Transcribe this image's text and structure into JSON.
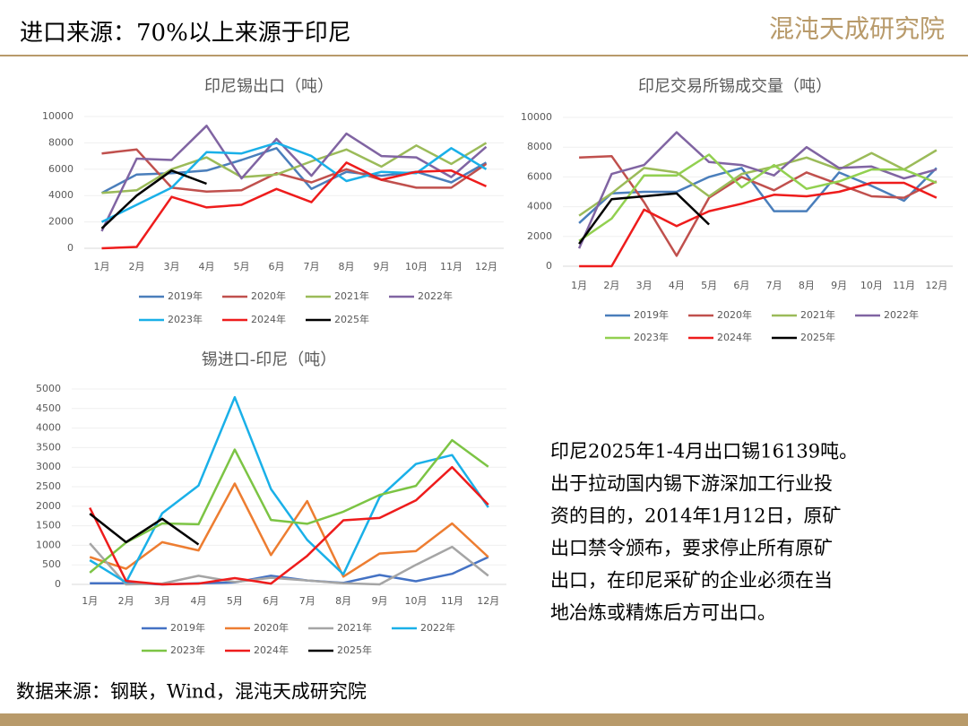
{
  "header": {
    "title": "进口来源：70%以上来源于印尼",
    "logo": "混沌天成研究院"
  },
  "note": {
    "lines": [
      "印尼2025年1-4月出口锡16139吨。",
      "出于拉动国内锡下游深加工行业投",
      "资的目的，2014年1月12日，原矿",
      "出口禁令颁布，要求停止所有原矿",
      "出口，在印尼采矿的企业必须在当",
      "地冶炼或精炼后方可出口。"
    ]
  },
  "source": "数据来源：钢联，Wind，混沌天成研究院",
  "chart_data": [
    {
      "type": "line",
      "title": "印尼锡出口（吨）",
      "grid": true,
      "categories": [
        "1月",
        "2月",
        "3月",
        "4月",
        "5月",
        "6月",
        "7月",
        "8月",
        "9月",
        "10月",
        "11月",
        "12月"
      ],
      "ylim": [
        0,
        10000
      ],
      "yticks": [
        0,
        2000,
        4000,
        6000,
        8000,
        10000
      ],
      "series": [
        {
          "name": "2019年",
          "color": "#4a7ebb",
          "values": [
            4200,
            5600,
            5700,
            5900,
            6700,
            7600,
            4500,
            5800,
            5500,
            5800,
            5000,
            6500
          ]
        },
        {
          "name": "2020年",
          "color": "#c0504d",
          "values": [
            7200,
            7500,
            4600,
            4300,
            4400,
            5700,
            5000,
            6000,
            5200,
            4600,
            4600,
            6400
          ]
        },
        {
          "name": "2021年",
          "color": "#9bbb59",
          "values": [
            4200,
            4400,
            6000,
            6900,
            5400,
            5600,
            6600,
            7500,
            6200,
            7800,
            6400,
            8000
          ]
        },
        {
          "name": "2022年",
          "color": "#8064a2",
          "values": [
            1300,
            6800,
            6700,
            9300,
            5300,
            8300,
            5500,
            8700,
            7000,
            6900,
            5400,
            7700
          ]
        },
        {
          "name": "2023年",
          "color": "#1ab0e8",
          "values": [
            2000,
            3300,
            4600,
            7300,
            7200,
            8000,
            7000,
            5100,
            5800,
            5700,
            7600,
            6000
          ]
        },
        {
          "name": "2024年",
          "color": "#ee1c1c",
          "values": [
            0,
            100,
            3900,
            3100,
            3300,
            4500,
            3500,
            6500,
            5200,
            5800,
            5900,
            4700
          ]
        },
        {
          "name": "2025年",
          "color": "#000000",
          "values": [
            1500,
            4000,
            5900,
            4900,
            null,
            null,
            null,
            null,
            null,
            null,
            null,
            null
          ]
        }
      ]
    },
    {
      "type": "line",
      "title": "印尼交易所锡成交量（吨）",
      "grid": true,
      "categories": [
        "1月",
        "2月",
        "3月",
        "4月",
        "5月",
        "6月",
        "7月",
        "8月",
        "9月",
        "10月",
        "11月",
        "12月"
      ],
      "ylim": [
        0,
        10000
      ],
      "yticks": [
        0,
        2000,
        4000,
        6000,
        8000,
        10000
      ],
      "series": [
        {
          "name": "2019年",
          "color": "#4a7ebb",
          "values": [
            2900,
            4900,
            5000,
            5000,
            6000,
            6600,
            3700,
            3700,
            6300,
            5400,
            4400,
            6600
          ]
        },
        {
          "name": "2020年",
          "color": "#c0504d",
          "values": [
            7300,
            7400,
            4300,
            700,
            4600,
            6000,
            5100,
            6300,
            5500,
            4700,
            4600,
            5700
          ]
        },
        {
          "name": "2021年",
          "color": "#9bbb59",
          "values": [
            3400,
            4900,
            6600,
            6300,
            4700,
            6200,
            6700,
            7300,
            6500,
            7600,
            6500,
            7800
          ]
        },
        {
          "name": "2022年",
          "color": "#8064a2",
          "values": [
            1200,
            6200,
            6800,
            9000,
            7000,
            6800,
            6100,
            8000,
            6600,
            6700,
            5900,
            6500
          ]
        },
        {
          "name": "2023年",
          "color": "#92d050",
          "values": [
            1700,
            3200,
            6100,
            6100,
            7500,
            5300,
            6800,
            5200,
            5700,
            6500,
            6500,
            5600
          ]
        },
        {
          "name": "2024年",
          "color": "#ee1c1c",
          "values": [
            0,
            0,
            3800,
            2700,
            3700,
            4200,
            4800,
            4700,
            5000,
            5600,
            5600,
            4600
          ]
        },
        {
          "name": "2025年",
          "color": "#000000",
          "values": [
            1500,
            4500,
            4700,
            4900,
            2800,
            null,
            null,
            null,
            null,
            null,
            null,
            null
          ]
        }
      ]
    },
    {
      "type": "line",
      "title": "锡进口-印尼（吨）",
      "grid": true,
      "categories": [
        "1月",
        "2月",
        "3月",
        "4月",
        "5月",
        "6月",
        "7月",
        "8月",
        "9月",
        "10月",
        "11月",
        "12月"
      ],
      "ylim": [
        0,
        5000
      ],
      "yticks": [
        0,
        500,
        1000,
        1500,
        2000,
        2500,
        3000,
        3500,
        4000,
        4500,
        5000
      ],
      "series": [
        {
          "name": "2019年",
          "color": "#4472c4",
          "values": [
            30,
            30,
            0,
            30,
            50,
            220,
            100,
            40,
            240,
            80,
            270,
            700
          ]
        },
        {
          "name": "2020年",
          "color": "#ed7d31",
          "values": [
            700,
            400,
            1080,
            870,
            2580,
            750,
            2130,
            200,
            790,
            850,
            1560,
            700
          ]
        },
        {
          "name": "2021年",
          "color": "#a5a5a5",
          "values": [
            1050,
            0,
            20,
            220,
            60,
            170,
            100,
            30,
            0,
            500,
            960,
            220
          ]
        },
        {
          "name": "2022年",
          "color": "#1ab0e8",
          "values": [
            620,
            50,
            1820,
            2530,
            4790,
            2440,
            1140,
            260,
            2230,
            3080,
            3310,
            1970
          ]
        },
        {
          "name": "2023年",
          "color": "#7cc444",
          "values": [
            300,
            1070,
            1560,
            1540,
            3450,
            1650,
            1550,
            1860,
            2290,
            2520,
            3690,
            3010
          ]
        },
        {
          "name": "2024年",
          "color": "#ee1c1c",
          "values": [
            1960,
            90,
            0,
            20,
            160,
            20,
            730,
            1640,
            1700,
            2150,
            3000,
            2040
          ]
        },
        {
          "name": "2025年",
          "color": "#000000",
          "values": [
            1810,
            1080,
            1680,
            1020,
            null,
            null,
            null,
            null,
            null,
            null,
            null,
            null
          ]
        }
      ]
    }
  ]
}
